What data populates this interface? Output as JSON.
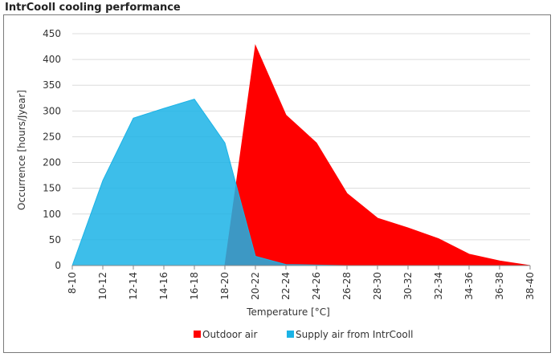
{
  "chart_data": {
    "type": "area",
    "title": "IntrCooll cooling performance",
    "xlabel": "Temperature [°C]",
    "ylabel": "Occurrence [hours/Jyear]",
    "categories": [
      "8-10",
      "10-12",
      "12-14",
      "14-16",
      "16-18",
      "18-20",
      "20-22",
      "22-24",
      "24-26",
      "26-28",
      "28-30",
      "30-32",
      "32-34",
      "34-36",
      "36-38",
      "38-40"
    ],
    "yticks": [
      0,
      50,
      100,
      150,
      200,
      250,
      300,
      350,
      400,
      450
    ],
    "ylim": [
      0,
      450
    ],
    "grid": true,
    "legend_position": "bottom",
    "series": [
      {
        "name": "Outdoor air",
        "color": "#ff0000",
        "values": [
          0,
          0,
          0,
          0,
          0,
          0,
          427,
          292,
          238,
          140,
          92,
          73,
          52,
          22,
          9,
          0
        ]
      },
      {
        "name": "Supply air from IntrCooll",
        "color": "#1bb3e6",
        "values": [
          0,
          165,
          286,
          305,
          323,
          238,
          18,
          2,
          1,
          0,
          0,
          0,
          0,
          0,
          0,
          0
        ]
      }
    ]
  }
}
